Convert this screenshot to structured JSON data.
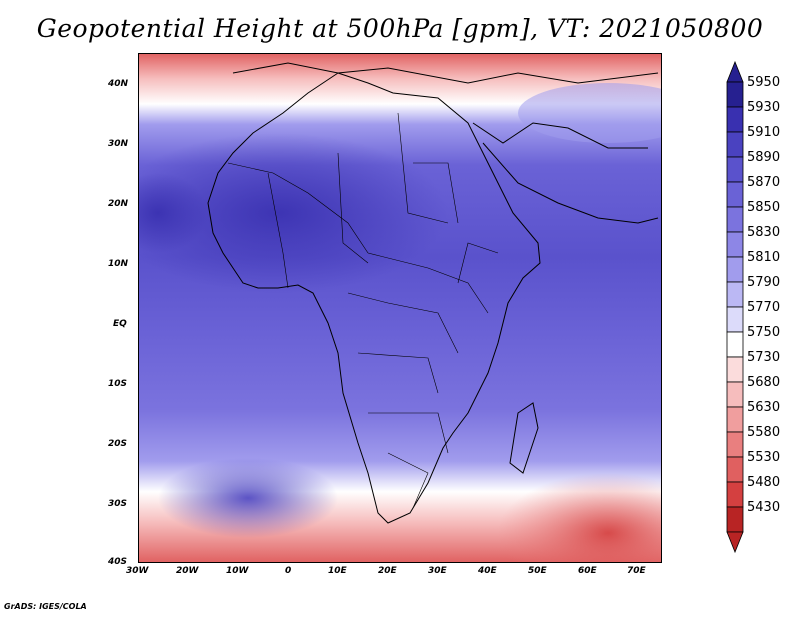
{
  "title": "Geopotential Height at 500hPa [gpm], VT: 2021050800",
  "footer": "GrADS: IGES/COLA",
  "map": {
    "projection": "latlon",
    "lon_range": [
      -30,
      75
    ],
    "lat_range": [
      -40,
      45
    ],
    "lon_ticks": [
      "30W",
      "20W",
      "10W",
      "0",
      "10E",
      "20E",
      "30E",
      "40E",
      "50E",
      "60E",
      "70E"
    ],
    "lat_ticks": [
      "40N",
      "30N",
      "20N",
      "10N",
      "EQ",
      "10S",
      "20S",
      "30S",
      "40S"
    ]
  },
  "colorbar": {
    "levels": [
      "5950",
      "5930",
      "5910",
      "5890",
      "5870",
      "5850",
      "5830",
      "5810",
      "5790",
      "5770",
      "5750",
      "5730",
      "5680",
      "5630",
      "5580",
      "5530",
      "5480",
      "5430"
    ],
    "colors": [
      "#262090",
      "#3930b0",
      "#4a42c0",
      "#5a52cc",
      "#6a62d6",
      "#7b73de",
      "#8d86e6",
      "#a19ced",
      "#bbb8f4",
      "#dcdbfa",
      "#ffffff",
      "#fbdcdc",
      "#f6bdbd",
      "#f09e9e",
      "#e97f7f",
      "#e06060",
      "#d44040",
      "#b82424"
    ]
  },
  "chart_data": {
    "type": "heatmap",
    "title": "Geopotential Height at 500hPa [gpm], VT: 2021050800",
    "x_ticks": [
      "30W",
      "20W",
      "10W",
      "0",
      "10E",
      "20E",
      "30E",
      "40E",
      "50E",
      "60E",
      "70E"
    ],
    "y_ticks": [
      "40N",
      "30N",
      "20N",
      "10N",
      "EQ",
      "10S",
      "20S",
      "30S",
      "40S"
    ],
    "legend_levels": [
      5430,
      5480,
      5530,
      5580,
      5630,
      5680,
      5730,
      5750,
      5770,
      5790,
      5810,
      5830,
      5850,
      5870,
      5890,
      5910,
      5930,
      5950
    ],
    "legend_placement": "right"
  }
}
